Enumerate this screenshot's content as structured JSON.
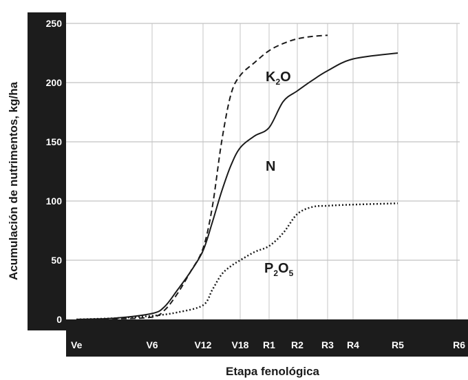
{
  "chart_data": {
    "type": "line",
    "xlabel": "Etapa fenológica",
    "ylabel": "Acumulación de nutrimentos, kg/ha",
    "ylim": [
      0,
      250
    ],
    "yticks": [
      "0",
      "50",
      "100",
      "150",
      "200",
      "250"
    ],
    "categories": [
      "Ve",
      "V6",
      "V12",
      "V18",
      "R1",
      "R2",
      "R3",
      "R4",
      "R5",
      "R6"
    ],
    "grid": true,
    "series": [
      {
        "name": "K2O",
        "label_main": "K",
        "label_sub": "2",
        "label_tail": "O",
        "style": "dashed",
        "color": "#1a1a1a",
        "points": [
          [
            0,
            0
          ],
          [
            0.5,
            0.5
          ],
          [
            1,
            2
          ],
          [
            1.25,
            8
          ],
          [
            1.5,
            22
          ],
          [
            1.75,
            40
          ],
          [
            2,
            60
          ],
          [
            2.25,
            95
          ],
          [
            2.5,
            150
          ],
          [
            2.75,
            190
          ],
          [
            3,
            206
          ],
          [
            3.5,
            217
          ],
          [
            4,
            227
          ],
          [
            4.5,
            233
          ],
          [
            5,
            237
          ],
          [
            5.5,
            239
          ],
          [
            6,
            240
          ]
        ]
      },
      {
        "name": "N",
        "label_main": "N",
        "style": "solid",
        "color": "#1a1a1a",
        "points": [
          [
            0,
            0
          ],
          [
            0.5,
            1
          ],
          [
            1,
            5
          ],
          [
            1.25,
            11
          ],
          [
            1.5,
            25
          ],
          [
            1.75,
            40
          ],
          [
            2,
            58
          ],
          [
            2.25,
            82
          ],
          [
            2.5,
            108
          ],
          [
            2.75,
            130
          ],
          [
            3,
            145
          ],
          [
            3.5,
            155
          ],
          [
            4,
            162
          ],
          [
            4.5,
            184
          ],
          [
            5,
            193
          ],
          [
            5.5,
            202
          ],
          [
            6,
            210
          ],
          [
            7,
            220
          ],
          [
            8,
            225
          ]
        ]
      },
      {
        "name": "P2O5",
        "label_main": "P",
        "label_sub": "2",
        "label_tail": "O",
        "label_tail_sub": "5",
        "style": "dotted",
        "color": "#1a1a1a",
        "points": [
          [
            0,
            0
          ],
          [
            0.5,
            1
          ],
          [
            1,
            3
          ],
          [
            1.5,
            6
          ],
          [
            2,
            12
          ],
          [
            2.25,
            25
          ],
          [
            2.5,
            38
          ],
          [
            2.75,
            45
          ],
          [
            3,
            50
          ],
          [
            3.5,
            57
          ],
          [
            4,
            62
          ],
          [
            4.5,
            73
          ],
          [
            5,
            89
          ],
          [
            5.5,
            95
          ],
          [
            6,
            96
          ],
          [
            7,
            97
          ],
          [
            8,
            98
          ]
        ]
      }
    ]
  }
}
